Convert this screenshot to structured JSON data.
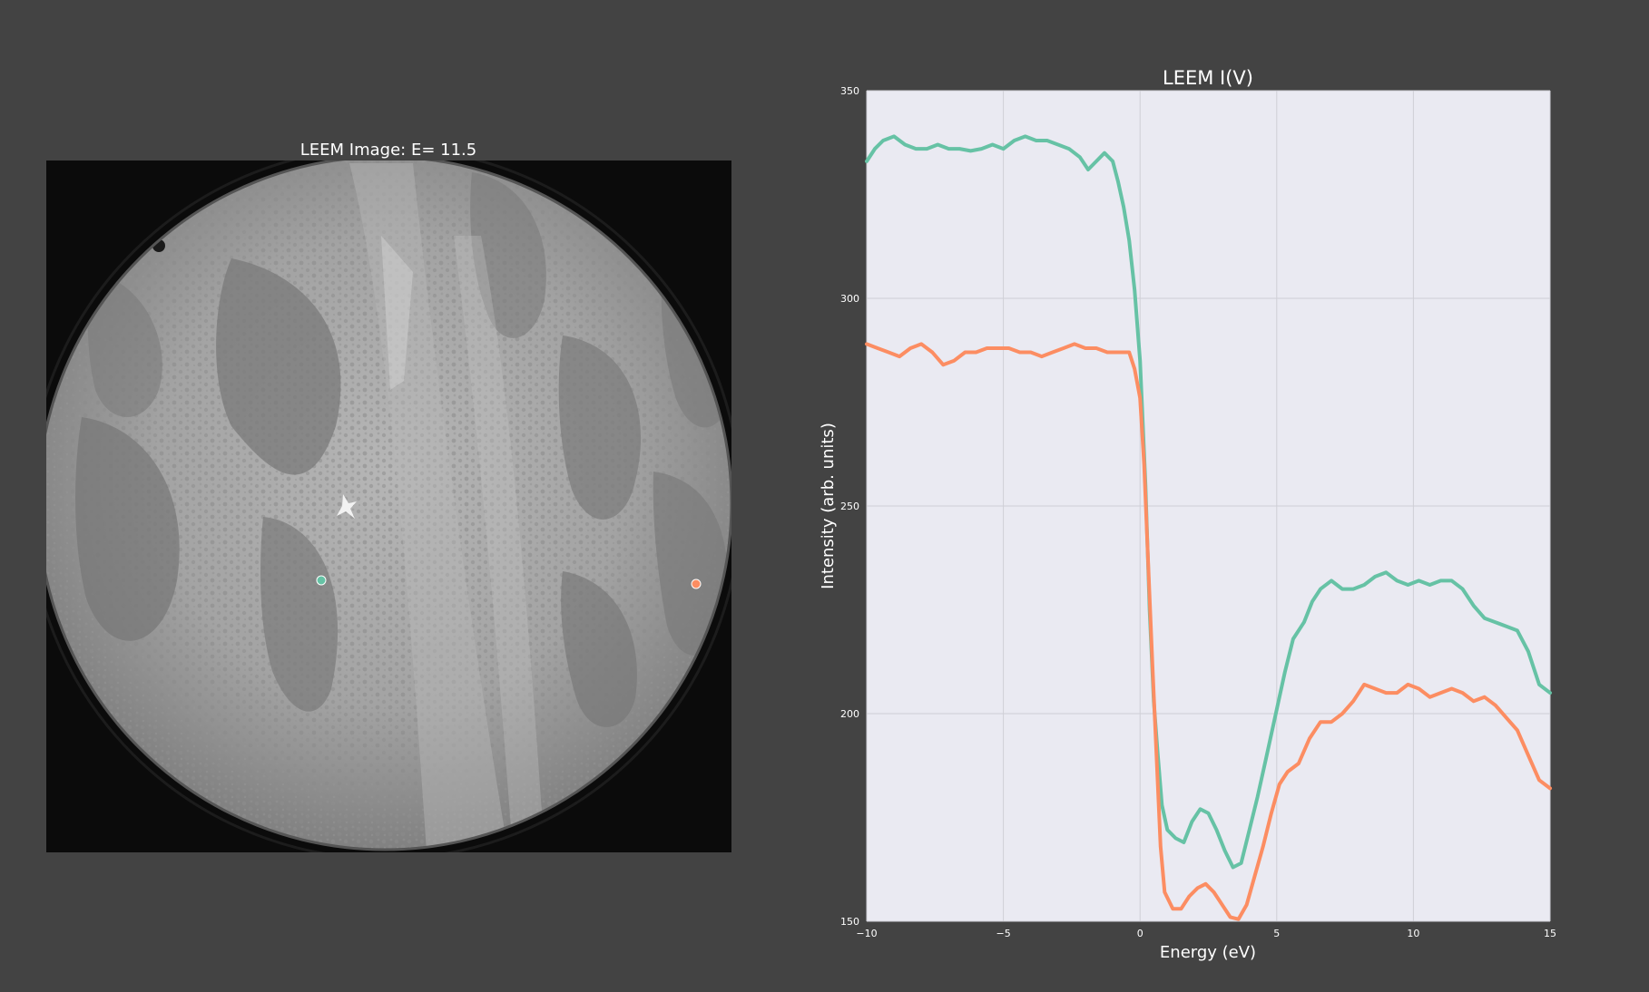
{
  "figure": {
    "background": "#434343"
  },
  "image_panel": {
    "title": "LEEM Image: E= 11.5",
    "markers": [
      {
        "name": "marker-1",
        "color": "#66c2a5"
      },
      {
        "name": "marker-2",
        "color": "#fc8d62"
      }
    ]
  },
  "chart_data": {
    "type": "line",
    "title": "LEEM I(V)",
    "xlabel": "Energy (eV)",
    "ylabel": "Intensity (arb. units)",
    "xlim": [
      -10,
      15
    ],
    "ylim": [
      150,
      350
    ],
    "xticks": [
      -10,
      -5,
      0,
      5,
      10,
      15
    ],
    "xtick_labels": [
      "−10",
      "−5",
      "0",
      "5",
      "10",
      "15"
    ],
    "yticks": [
      150,
      200,
      250,
      300,
      350
    ],
    "ytick_labels": [
      "150",
      "200",
      "250",
      "300",
      "350"
    ],
    "grid": true,
    "plot_background": "#eaeaf2",
    "series": [
      {
        "color": "#66c2a5",
        "points": [
          [
            -10,
            333
          ],
          [
            -9.7,
            336
          ],
          [
            -9.4,
            338
          ],
          [
            -9.0,
            339
          ],
          [
            -8.6,
            337
          ],
          [
            -8.2,
            336
          ],
          [
            -7.8,
            336
          ],
          [
            -7.4,
            337
          ],
          [
            -7.0,
            336
          ],
          [
            -6.6,
            336
          ],
          [
            -6.2,
            335.5
          ],
          [
            -5.8,
            336
          ],
          [
            -5.4,
            337
          ],
          [
            -5.0,
            336
          ],
          [
            -4.6,
            338
          ],
          [
            -4.2,
            339
          ],
          [
            -3.8,
            338
          ],
          [
            -3.4,
            338
          ],
          [
            -3.0,
            337
          ],
          [
            -2.6,
            336
          ],
          [
            -2.2,
            334
          ],
          [
            -1.9,
            331
          ],
          [
            -1.6,
            333
          ],
          [
            -1.3,
            335
          ],
          [
            -1.0,
            333
          ],
          [
            -0.8,
            328
          ],
          [
            -0.6,
            322
          ],
          [
            -0.4,
            314
          ],
          [
            -0.2,
            302
          ],
          [
            0.0,
            285
          ],
          [
            0.2,
            255
          ],
          [
            0.35,
            225
          ],
          [
            0.5,
            203
          ],
          [
            0.65,
            190
          ],
          [
            0.8,
            178
          ],
          [
            1.0,
            172
          ],
          [
            1.3,
            170
          ],
          [
            1.6,
            169
          ],
          [
            1.9,
            174
          ],
          [
            2.2,
            177
          ],
          [
            2.5,
            176
          ],
          [
            2.8,
            172
          ],
          [
            3.1,
            167
          ],
          [
            3.4,
            163
          ],
          [
            3.7,
            164
          ],
          [
            4.0,
            172
          ],
          [
            4.3,
            180
          ],
          [
            4.6,
            189
          ],
          [
            5.0,
            201
          ],
          [
            5.3,
            210
          ],
          [
            5.6,
            218
          ],
          [
            6.0,
            222
          ],
          [
            6.3,
            227
          ],
          [
            6.6,
            230
          ],
          [
            7.0,
            232
          ],
          [
            7.4,
            230
          ],
          [
            7.8,
            230
          ],
          [
            8.2,
            231
          ],
          [
            8.6,
            233
          ],
          [
            9.0,
            234
          ],
          [
            9.4,
            232
          ],
          [
            9.8,
            231
          ],
          [
            10.2,
            232
          ],
          [
            10.6,
            231
          ],
          [
            11.0,
            232
          ],
          [
            11.4,
            232
          ],
          [
            11.8,
            230
          ],
          [
            12.2,
            226
          ],
          [
            12.6,
            223
          ],
          [
            13.0,
            222
          ],
          [
            13.4,
            221
          ],
          [
            13.8,
            220
          ],
          [
            14.2,
            215
          ],
          [
            14.6,
            207
          ],
          [
            15.0,
            205
          ]
        ]
      },
      {
        "color": "#fc8d62",
        "points": [
          [
            -10,
            289
          ],
          [
            -9.6,
            288
          ],
          [
            -9.2,
            287
          ],
          [
            -8.8,
            286
          ],
          [
            -8.4,
            288
          ],
          [
            -8.0,
            289
          ],
          [
            -7.6,
            287
          ],
          [
            -7.2,
            284
          ],
          [
            -6.8,
            285
          ],
          [
            -6.4,
            287
          ],
          [
            -6.0,
            287
          ],
          [
            -5.6,
            288
          ],
          [
            -5.2,
            288
          ],
          [
            -4.8,
            288
          ],
          [
            -4.4,
            287
          ],
          [
            -4.0,
            287
          ],
          [
            -3.6,
            286
          ],
          [
            -3.2,
            287
          ],
          [
            -2.8,
            288
          ],
          [
            -2.4,
            289
          ],
          [
            -2.0,
            288
          ],
          [
            -1.6,
            288
          ],
          [
            -1.2,
            287
          ],
          [
            -0.8,
            287
          ],
          [
            -0.4,
            287
          ],
          [
            -0.2,
            283
          ],
          [
            0.0,
            276
          ],
          [
            0.15,
            260
          ],
          [
            0.3,
            236
          ],
          [
            0.45,
            212
          ],
          [
            0.6,
            190
          ],
          [
            0.75,
            168
          ],
          [
            0.9,
            157
          ],
          [
            1.2,
            153
          ],
          [
            1.5,
            153
          ],
          [
            1.8,
            156
          ],
          [
            2.1,
            158
          ],
          [
            2.4,
            159
          ],
          [
            2.7,
            157
          ],
          [
            3.0,
            154
          ],
          [
            3.3,
            151
          ],
          [
            3.6,
            150.5
          ],
          [
            3.9,
            154
          ],
          [
            4.2,
            161
          ],
          [
            4.5,
            168
          ],
          [
            4.8,
            176
          ],
          [
            5.1,
            183
          ],
          [
            5.4,
            186
          ],
          [
            5.8,
            188
          ],
          [
            6.2,
            194
          ],
          [
            6.6,
            198
          ],
          [
            7.0,
            198
          ],
          [
            7.4,
            200
          ],
          [
            7.8,
            203
          ],
          [
            8.2,
            207
          ],
          [
            8.6,
            206
          ],
          [
            9.0,
            205
          ],
          [
            9.4,
            205
          ],
          [
            9.8,
            207
          ],
          [
            10.2,
            206
          ],
          [
            10.6,
            204
          ],
          [
            11.0,
            205
          ],
          [
            11.4,
            206
          ],
          [
            11.8,
            205
          ],
          [
            12.2,
            203
          ],
          [
            12.6,
            204
          ],
          [
            13.0,
            202
          ],
          [
            13.4,
            199
          ],
          [
            13.8,
            196
          ],
          [
            14.2,
            190
          ],
          [
            14.6,
            184
          ],
          [
            15.0,
            182
          ]
        ]
      }
    ]
  }
}
